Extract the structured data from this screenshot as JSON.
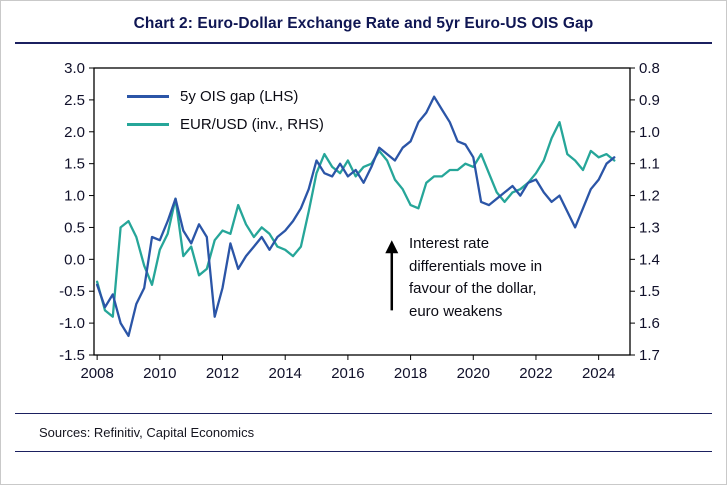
{
  "title": "Chart 2: Euro-Dollar Exchange Rate and 5yr Euro-US OIS Gap",
  "legend": [
    {
      "label": "5y OIS gap (LHS)",
      "color": "#2b55a7"
    },
    {
      "label": "EUR/USD (inv., RHS)",
      "color": "#26a699"
    }
  ],
  "annotation": {
    "text": "Interest rate\ndifferentials move in\nfavour of the dollar,\neuro weakens"
  },
  "footer": {
    "sources": "Sources: Refinitiv, Capital Economics"
  },
  "chart_data": {
    "type": "line",
    "title": "Chart 2: Euro-Dollar Exchange Rate and 5yr Euro-US OIS Gap",
    "grid": false,
    "legend_position": "top-left-inside",
    "annotation": "Interest rate differentials move in favour of the dollar, euro weakens",
    "x_axis": {
      "domain": [
        2007.9,
        2025.0
      ],
      "ticks": [
        "2008",
        "2010",
        "2012",
        "2014",
        "2016",
        "2018",
        "2020",
        "2022",
        "2024"
      ]
    },
    "left_axis": {
      "min": -1.5,
      "max": 3.0,
      "tick_step": 0.5,
      "ticks": [
        "3.0",
        "2.5",
        "2.0",
        "1.5",
        "1.0",
        "0.5",
        "0.0",
        "-0.5",
        "-1.0",
        "-1.5"
      ]
    },
    "right_axis": {
      "min": 0.8,
      "max": 1.7,
      "inverted": true,
      "tick_step": 0.1,
      "ticks": [
        "0.8",
        "0.9",
        "1.0",
        "1.1",
        "1.2",
        "1.3",
        "1.4",
        "1.5",
        "1.6",
        "1.7"
      ]
    },
    "x": [
      2008,
      2008.25,
      2008.5,
      2008.75,
      2009,
      2009.25,
      2009.5,
      2009.75,
      2010,
      2010.25,
      2010.5,
      2010.75,
      2011,
      2011.25,
      2011.5,
      2011.75,
      2012,
      2012.25,
      2012.5,
      2012.75,
      2013,
      2013.25,
      2013.5,
      2013.75,
      2014,
      2014.25,
      2014.5,
      2014.75,
      2015,
      2015.25,
      2015.5,
      2015.75,
      2016,
      2016.25,
      2016.5,
      2016.75,
      2017,
      2017.25,
      2017.5,
      2017.75,
      2018,
      2018.25,
      2018.5,
      2018.75,
      2019,
      2019.25,
      2019.5,
      2019.75,
      2020,
      2020.25,
      2020.5,
      2020.75,
      2021,
      2021.25,
      2021.5,
      2021.75,
      2022,
      2022.25,
      2022.5,
      2022.75,
      2023,
      2023.25,
      2023.5,
      2023.75,
      2024,
      2024.25,
      2024.5
    ],
    "series": [
      {
        "name": "5y OIS gap (LHS)",
        "axis": "left",
        "color": "#2b55a7",
        "values": [
          -0.4,
          -0.75,
          -0.55,
          -1.0,
          -1.2,
          -0.7,
          -0.45,
          0.35,
          0.3,
          0.6,
          0.95,
          0.45,
          0.25,
          0.55,
          0.35,
          -0.9,
          -0.45,
          0.25,
          -0.15,
          0.05,
          0.2,
          0.35,
          0.15,
          0.35,
          0.45,
          0.6,
          0.8,
          1.1,
          1.55,
          1.35,
          1.3,
          1.5,
          1.3,
          1.4,
          1.2,
          1.45,
          1.75,
          1.65,
          1.55,
          1.75,
          1.85,
          2.15,
          2.3,
          2.55,
          2.35,
          2.15,
          1.85,
          1.8,
          1.6,
          0.9,
          0.85,
          0.95,
          1.05,
          1.15,
          1.0,
          1.2,
          1.25,
          1.05,
          0.9,
          1.0,
          0.75,
          0.5,
          0.8,
          1.1,
          1.25,
          1.5,
          1.6
        ]
      },
      {
        "name": "EUR/USD (inv., RHS)",
        "axis": "right",
        "color": "#26a699",
        "values": [
          1.47,
          1.56,
          1.58,
          1.3,
          1.28,
          1.33,
          1.42,
          1.48,
          1.37,
          1.32,
          1.21,
          1.39,
          1.36,
          1.45,
          1.43,
          1.34,
          1.31,
          1.32,
          1.23,
          1.29,
          1.33,
          1.3,
          1.32,
          1.36,
          1.37,
          1.39,
          1.36,
          1.25,
          1.13,
          1.07,
          1.11,
          1.13,
          1.09,
          1.14,
          1.11,
          1.1,
          1.06,
          1.09,
          1.15,
          1.18,
          1.23,
          1.24,
          1.16,
          1.14,
          1.14,
          1.12,
          1.12,
          1.1,
          1.11,
          1.07,
          1.13,
          1.19,
          1.22,
          1.19,
          1.18,
          1.16,
          1.13,
          1.09,
          1.02,
          0.97,
          1.07,
          1.09,
          1.12,
          1.06,
          1.08,
          1.07,
          1.09
        ]
      }
    ]
  }
}
